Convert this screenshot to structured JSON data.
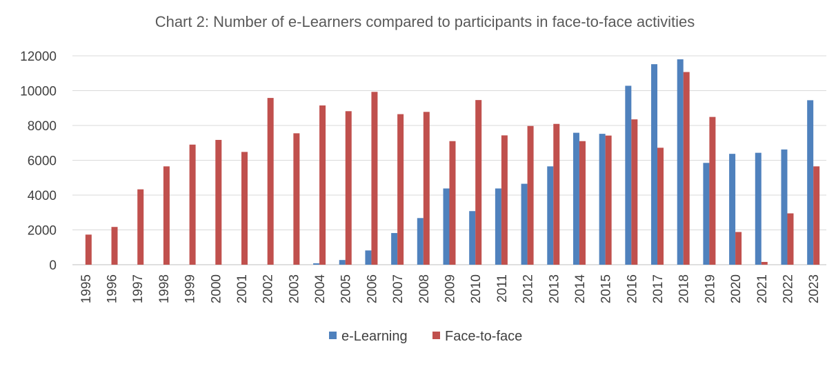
{
  "chart_data": {
    "type": "bar",
    "title": "Chart 2: Number of e-Learners compared to participants in face-to-face activities",
    "xlabel": "",
    "ylabel": "",
    "ylim": [
      0,
      12000
    ],
    "yticks": [
      0,
      2000,
      4000,
      6000,
      8000,
      10000,
      12000
    ],
    "yticks_labels": [
      "0",
      "2000",
      "4000",
      "6000",
      "8000",
      "10000",
      "12000"
    ],
    "grid": true,
    "legend_position": "bottom-center",
    "categories": [
      "1995",
      "1996",
      "1997",
      "1998",
      "1999",
      "2000",
      "2001",
      "2002",
      "2003",
      "2004",
      "2005",
      "2006",
      "2007",
      "2008",
      "2009",
      "2010",
      "2011",
      "2012",
      "2013",
      "2014",
      "2015",
      "2016",
      "2017",
      "2018",
      "2019",
      "2020",
      "2021",
      "2022",
      "2023"
    ],
    "series": [
      {
        "name": "e-Learning",
        "color": "#4F81BD",
        "values": [
          0,
          0,
          0,
          0,
          0,
          0,
          0,
          0,
          0,
          80,
          270,
          820,
          1820,
          2680,
          4380,
          3080,
          4380,
          4650,
          5650,
          7580,
          7520,
          10280,
          11520,
          11800,
          5850,
          6370,
          6430,
          6620,
          9450
        ]
      },
      {
        "name": "Face-to-face",
        "color": "#C0504D",
        "values": [
          1730,
          2170,
          4330,
          5650,
          6900,
          7170,
          6480,
          9580,
          7550,
          9150,
          8820,
          9930,
          8650,
          8780,
          7100,
          9460,
          7430,
          7970,
          8090,
          7100,
          7420,
          8350,
          6720,
          11070,
          8490,
          1880,
          160,
          2950,
          5650
        ]
      }
    ]
  },
  "colors": {
    "elearning": "#4F81BD",
    "facetoface": "#C0504D",
    "grid": "#D9D9D9",
    "axis": "#BFBFBF",
    "title": "#595959",
    "text": "#404040"
  }
}
